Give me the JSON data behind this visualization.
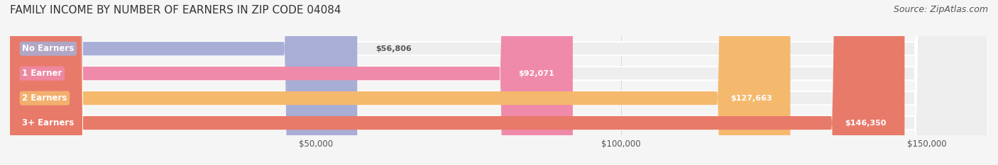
{
  "title": "FAMILY INCOME BY NUMBER OF EARNERS IN ZIP CODE 04084",
  "source": "Source: ZipAtlas.com",
  "categories": [
    "No Earners",
    "1 Earner",
    "2 Earners",
    "3+ Earners"
  ],
  "values": [
    56806,
    92071,
    127663,
    146350
  ],
  "bar_colors": [
    "#a8aed6",
    "#f08aaa",
    "#f5b96e",
    "#e87a6a"
  ],
  "label_colors": [
    "#a8aed6",
    "#f08aaa",
    "#f5b96e",
    "#e87a6a"
  ],
  "value_labels": [
    "$56,806",
    "$92,071",
    "$127,663",
    "$146,350"
  ],
  "xmin": 0,
  "xmax": 160000,
  "xticks": [
    50000,
    100000,
    150000
  ],
  "xtick_labels": [
    "$50,000",
    "$100,000",
    "$150,000"
  ],
  "background_color": "#f5f5f5",
  "bar_background_color": "#eeeeee",
  "title_fontsize": 11,
  "source_fontsize": 9,
  "bar_height": 0.55
}
